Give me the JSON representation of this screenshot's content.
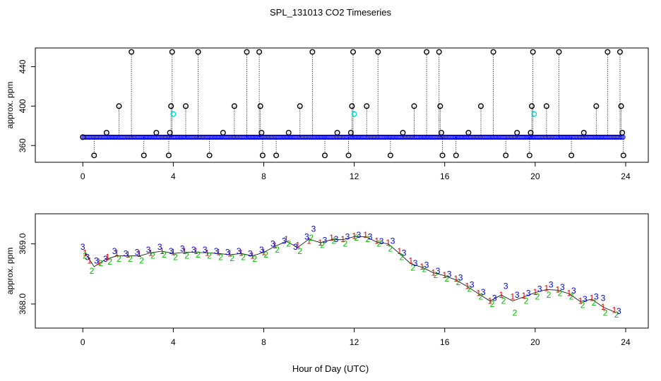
{
  "title": "SPL_131013  CO2 Timeseries",
  "xlabel": "Hour of Day (UTC)",
  "colors": {
    "ring": "#000000",
    "blue": "#0000ff",
    "cyan": "#00dddd",
    "red": "#dd0000",
    "green": "#00bb00",
    "orange": "#ff8800"
  },
  "chart_data": [
    {
      "type": "scatter",
      "title": "",
      "xlabel": "",
      "ylabel": "approx. ppm",
      "xlim": [
        -2.1,
        25
      ],
      "ylim": [
        343,
        459
      ],
      "xticks": [
        0,
        4,
        8,
        12,
        16,
        20,
        24
      ],
      "yticks": [
        360,
        400,
        440
      ],
      "grid": false,
      "baseline": {
        "x_start": 0.0,
        "x_end": 23.9,
        "y": 368.5
      },
      "rings": [
        {
          "x": 0.0,
          "y": 368.5
        },
        {
          "x": 0.5,
          "y": 350
        },
        {
          "x": 1.05,
          "y": 373
        },
        {
          "x": 1.6,
          "y": 400
        },
        {
          "x": 2.15,
          "y": 455
        },
        {
          "x": 2.7,
          "y": 350
        },
        {
          "x": 3.25,
          "y": 373
        },
        {
          "x": 3.8,
          "y": 350
        },
        {
          "x": 3.85,
          "y": 373
        },
        {
          "x": 3.9,
          "y": 400
        },
        {
          "x": 3.95,
          "y": 455
        },
        {
          "x": 4.55,
          "y": 400
        },
        {
          "x": 5.1,
          "y": 455
        },
        {
          "x": 5.6,
          "y": 350
        },
        {
          "x": 6.2,
          "y": 373
        },
        {
          "x": 6.7,
          "y": 400
        },
        {
          "x": 7.25,
          "y": 455
        },
        {
          "x": 7.8,
          "y": 455
        },
        {
          "x": 7.85,
          "y": 400
        },
        {
          "x": 7.9,
          "y": 373
        },
        {
          "x": 7.95,
          "y": 350
        },
        {
          "x": 8.55,
          "y": 350
        },
        {
          "x": 9.1,
          "y": 373
        },
        {
          "x": 9.6,
          "y": 400
        },
        {
          "x": 10.15,
          "y": 455
        },
        {
          "x": 10.7,
          "y": 350
        },
        {
          "x": 11.25,
          "y": 373
        },
        {
          "x": 11.75,
          "y": 350
        },
        {
          "x": 11.85,
          "y": 373
        },
        {
          "x": 11.9,
          "y": 400
        },
        {
          "x": 11.95,
          "y": 455
        },
        {
          "x": 12.55,
          "y": 400
        },
        {
          "x": 13.05,
          "y": 455
        },
        {
          "x": 13.6,
          "y": 350
        },
        {
          "x": 14.15,
          "y": 373
        },
        {
          "x": 14.65,
          "y": 400
        },
        {
          "x": 15.2,
          "y": 455
        },
        {
          "x": 15.75,
          "y": 455
        },
        {
          "x": 15.8,
          "y": 400
        },
        {
          "x": 15.85,
          "y": 373
        },
        {
          "x": 15.9,
          "y": 350
        },
        {
          "x": 16.5,
          "y": 350
        },
        {
          "x": 17.05,
          "y": 373
        },
        {
          "x": 17.6,
          "y": 400
        },
        {
          "x": 18.15,
          "y": 455
        },
        {
          "x": 18.7,
          "y": 350
        },
        {
          "x": 19.2,
          "y": 373
        },
        {
          "x": 19.75,
          "y": 350
        },
        {
          "x": 19.8,
          "y": 373
        },
        {
          "x": 19.85,
          "y": 400
        },
        {
          "x": 19.9,
          "y": 455
        },
        {
          "x": 20.5,
          "y": 400
        },
        {
          "x": 21.05,
          "y": 455
        },
        {
          "x": 21.6,
          "y": 350
        },
        {
          "x": 22.15,
          "y": 373
        },
        {
          "x": 22.7,
          "y": 400
        },
        {
          "x": 23.2,
          "y": 455
        },
        {
          "x": 23.75,
          "y": 455
        },
        {
          "x": 23.8,
          "y": 400
        },
        {
          "x": 23.85,
          "y": 373
        },
        {
          "x": 23.9,
          "y": 350
        }
      ],
      "cyan_rings": [
        {
          "x": 4.0,
          "y": 392
        },
        {
          "x": 12.0,
          "y": 392
        },
        {
          "x": 19.95,
          "y": 392
        }
      ]
    },
    {
      "type": "scatter",
      "title": "",
      "xlabel": "Hour of Day (UTC)",
      "ylabel": "approx. ppm",
      "xlim": [
        -2.1,
        25
      ],
      "ylim": [
        367.6,
        369.5
      ],
      "xticks": [
        0,
        4,
        8,
        12,
        16,
        20,
        24
      ],
      "yticks": [
        368.0,
        369.0
      ],
      "grid": false,
      "series": [
        {
          "glyph": "1",
          "color": "#dd0000",
          "values": [
            [
              0.1,
              368.85
            ],
            [
              0.3,
              368.72
            ],
            [
              0.7,
              368.7
            ],
            [
              1.1,
              368.78
            ],
            [
              1.5,
              368.85
            ],
            [
              2.0,
              368.82
            ],
            [
              2.5,
              368.83
            ],
            [
              3.0,
              368.85
            ],
            [
              3.5,
              368.88
            ],
            [
              4.0,
              368.86
            ],
            [
              4.5,
              368.88
            ],
            [
              5.0,
              368.88
            ],
            [
              5.5,
              368.85
            ],
            [
              6.0,
              368.86
            ],
            [
              6.5,
              368.84
            ],
            [
              7.0,
              368.85
            ],
            [
              7.5,
              368.8
            ],
            [
              8.0,
              368.86
            ],
            [
              8.5,
              368.97
            ],
            [
              9.0,
              369.08
            ],
            [
              9.5,
              368.98
            ],
            [
              10.0,
              369.05
            ],
            [
              10.5,
              369.02
            ],
            [
              11.0,
              369.1
            ],
            [
              11.5,
              369.08
            ],
            [
              12.0,
              369.13
            ],
            [
              12.5,
              369.15
            ],
            [
              13.0,
              369.05
            ],
            [
              13.5,
              369.02
            ],
            [
              14.0,
              368.88
            ],
            [
              14.5,
              368.72
            ],
            [
              15.0,
              368.62
            ],
            [
              15.5,
              368.52
            ],
            [
              16.0,
              368.48
            ],
            [
              16.5,
              368.42
            ],
            [
              17.0,
              368.3
            ],
            [
              17.5,
              368.18
            ],
            [
              18.0,
              368.05
            ],
            [
              18.5,
              368.15
            ],
            [
              19.0,
              368.12
            ],
            [
              19.5,
              368.14
            ],
            [
              20.0,
              368.2
            ],
            [
              20.5,
              368.26
            ],
            [
              21.0,
              368.24
            ],
            [
              21.5,
              368.18
            ],
            [
              22.0,
              368.05
            ],
            [
              22.5,
              368.1
            ],
            [
              23.0,
              367.95
            ],
            [
              23.5,
              367.9
            ]
          ]
        },
        {
          "glyph": "2",
          "color": "#00bb00",
          "values": [
            [
              0.1,
              368.8
            ],
            [
              0.4,
              368.55
            ],
            [
              0.8,
              368.68
            ],
            [
              1.2,
              368.7
            ],
            [
              1.6,
              368.75
            ],
            [
              2.1,
              368.75
            ],
            [
              2.6,
              368.72
            ],
            [
              3.1,
              368.8
            ],
            [
              3.6,
              368.82
            ],
            [
              4.1,
              368.78
            ],
            [
              4.6,
              368.8
            ],
            [
              5.1,
              368.82
            ],
            [
              5.6,
              368.8
            ],
            [
              6.1,
              368.78
            ],
            [
              6.6,
              368.76
            ],
            [
              7.1,
              368.78
            ],
            [
              7.6,
              368.75
            ],
            [
              8.1,
              368.82
            ],
            [
              8.6,
              368.9
            ],
            [
              9.1,
              369.0
            ],
            [
              9.6,
              368.88
            ],
            [
              10.1,
              369.1
            ],
            [
              10.6,
              368.98
            ],
            [
              11.1,
              369.05
            ],
            [
              11.6,
              369.0
            ],
            [
              12.1,
              369.1
            ],
            [
              12.6,
              369.08
            ],
            [
              13.1,
              369.0
            ],
            [
              13.6,
              368.92
            ],
            [
              14.1,
              368.78
            ],
            [
              14.6,
              368.6
            ],
            [
              15.1,
              368.58
            ],
            [
              15.6,
              368.48
            ],
            [
              16.1,
              368.42
            ],
            [
              16.6,
              368.36
            ],
            [
              17.1,
              368.25
            ],
            [
              17.6,
              368.12
            ],
            [
              18.1,
              368.0
            ],
            [
              18.6,
              368.05
            ],
            [
              19.1,
              367.85
            ],
            [
              19.6,
              368.05
            ],
            [
              20.1,
              368.12
            ],
            [
              20.6,
              368.15
            ],
            [
              21.1,
              368.18
            ],
            [
              21.6,
              368.12
            ],
            [
              22.1,
              367.98
            ],
            [
              22.6,
              368.02
            ],
            [
              23.1,
              367.85
            ],
            [
              23.6,
              367.82
            ]
          ]
        },
        {
          "glyph": "3",
          "color": "#0000dd",
          "values": [
            [
              0.0,
              368.95
            ],
            [
              0.2,
              368.78
            ],
            [
              0.6,
              368.72
            ],
            [
              1.0,
              368.75
            ],
            [
              1.4,
              368.88
            ],
            [
              1.9,
              368.84
            ],
            [
              2.4,
              368.86
            ],
            [
              2.9,
              368.9
            ],
            [
              3.4,
              368.95
            ],
            [
              3.9,
              368.88
            ],
            [
              4.4,
              368.92
            ],
            [
              4.9,
              368.9
            ],
            [
              5.4,
              368.9
            ],
            [
              5.9,
              368.88
            ],
            [
              6.4,
              368.86
            ],
            [
              6.9,
              368.88
            ],
            [
              7.4,
              368.84
            ],
            [
              7.9,
              368.9
            ],
            [
              8.4,
              369.0
            ],
            [
              8.9,
              369.05
            ],
            [
              9.4,
              368.95
            ],
            [
              9.9,
              369.12
            ],
            [
              10.2,
              369.25
            ],
            [
              10.7,
              369.06
            ],
            [
              11.2,
              369.08
            ],
            [
              11.7,
              369.12
            ],
            [
              12.2,
              369.15
            ],
            [
              12.7,
              369.12
            ],
            [
              13.2,
              369.04
            ],
            [
              13.7,
              369.05
            ],
            [
              14.2,
              368.85
            ],
            [
              14.7,
              368.68
            ],
            [
              15.2,
              368.65
            ],
            [
              15.7,
              368.55
            ],
            [
              16.2,
              368.5
            ],
            [
              16.7,
              368.44
            ],
            [
              17.2,
              368.32
            ],
            [
              17.7,
              368.2
            ],
            [
              18.2,
              368.1
            ],
            [
              18.7,
              368.3
            ],
            [
              19.2,
              368.15
            ],
            [
              19.7,
              368.18
            ],
            [
              20.2,
              368.25
            ],
            [
              20.7,
              368.32
            ],
            [
              21.2,
              368.28
            ],
            [
              21.7,
              368.22
            ],
            [
              22.2,
              368.08
            ],
            [
              22.7,
              368.12
            ],
            [
              23.0,
              368.1
            ],
            [
              23.7,
              367.88
            ]
          ]
        }
      ],
      "line": [
        [
          0.1,
          368.85
        ],
        [
          0.5,
          368.62
        ],
        [
          1.0,
          368.74
        ],
        [
          1.5,
          368.8
        ],
        [
          2.0,
          368.8
        ],
        [
          2.5,
          368.8
        ],
        [
          3.0,
          368.85
        ],
        [
          3.5,
          368.88
        ],
        [
          4.0,
          368.84
        ],
        [
          4.5,
          368.86
        ],
        [
          5.0,
          368.86
        ],
        [
          5.5,
          368.85
        ],
        [
          6.0,
          368.84
        ],
        [
          6.5,
          368.82
        ],
        [
          7.0,
          368.84
        ],
        [
          7.5,
          368.8
        ],
        [
          8.0,
          368.86
        ],
        [
          8.5,
          368.96
        ],
        [
          9.0,
          369.04
        ],
        [
          9.5,
          368.94
        ],
        [
          10.0,
          369.08
        ],
        [
          10.5,
          369.02
        ],
        [
          11.0,
          369.07
        ],
        [
          11.5,
          369.07
        ],
        [
          12.0,
          369.12
        ],
        [
          12.5,
          369.12
        ],
        [
          13.0,
          369.03
        ],
        [
          13.5,
          369.0
        ],
        [
          14.0,
          368.84
        ],
        [
          14.5,
          368.67
        ],
        [
          15.0,
          368.61
        ],
        [
          15.5,
          368.52
        ],
        [
          16.0,
          368.47
        ],
        [
          16.5,
          368.4
        ],
        [
          17.0,
          368.29
        ],
        [
          17.5,
          368.17
        ],
        [
          18.0,
          368.05
        ],
        [
          18.5,
          368.15
        ],
        [
          19.0,
          368.05
        ],
        [
          19.5,
          368.12
        ],
        [
          20.0,
          368.19
        ],
        [
          20.5,
          368.24
        ],
        [
          21.0,
          368.23
        ],
        [
          21.5,
          368.17
        ],
        [
          22.0,
          368.04
        ],
        [
          22.5,
          368.08
        ],
        [
          23.0,
          367.95
        ],
        [
          23.5,
          367.87
        ]
      ]
    }
  ]
}
